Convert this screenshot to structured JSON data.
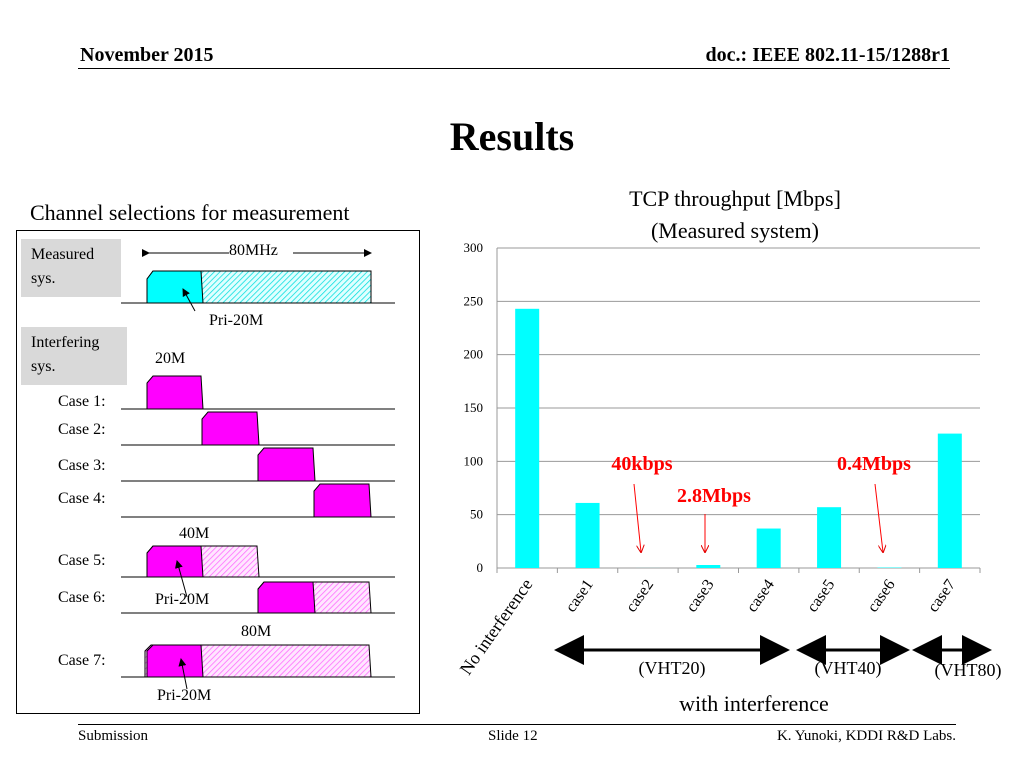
{
  "header": {
    "date": "November 2015",
    "doc": "doc.: IEEE 802.11-15/1288r1"
  },
  "title": "Results",
  "channel_panel": {
    "heading": "Channel selections for measurement",
    "measured_label": "Measured sys.",
    "interfering_label": "Interfering sys.",
    "bw_80": "80MHz",
    "pri_label": "Pri-20M",
    "bw_20": "20M",
    "bw_40": "40M",
    "bw_80b": "80M",
    "cases": [
      "Case 1:",
      "Case 2:",
      "Case 3:",
      "Case 4:",
      "Case 5:",
      "Case 6:",
      "Case 7:"
    ],
    "colors": {
      "measured": "#00ffff",
      "interfering": "#ff00ff",
      "border": "#000000"
    }
  },
  "chart_title_line1": "TCP throughput [Mbps]",
  "chart_title_line2": "(Measured system)",
  "chart_data": {
    "type": "bar",
    "categories": [
      "No interference",
      "case1",
      "case2",
      "case3",
      "case4",
      "case5",
      "case6",
      "case7"
    ],
    "values": [
      243,
      61,
      0.04,
      2.8,
      37,
      57,
      0.4,
      126
    ],
    "ylim": [
      0,
      300
    ],
    "yticks": [
      0,
      50,
      100,
      150,
      200,
      250,
      300
    ],
    "grid": true,
    "bar_color": "#00ffff",
    "annotations": [
      {
        "text": "40kbps",
        "category": "case2",
        "color": "#ff0000"
      },
      {
        "text": "2.8Mbps",
        "category": "case3",
        "color": "#ff0000"
      },
      {
        "text": "0.4Mbps",
        "category": "case6",
        "color": "#ff0000"
      }
    ],
    "groups": [
      {
        "label": "(VHT20)",
        "from": "case1",
        "to": "case4"
      },
      {
        "label": "(VHT40)",
        "from": "case5",
        "to": "case6"
      },
      {
        "label": "(VHT80)",
        "from": "case7",
        "to": "case7"
      }
    ],
    "group_caption": "with interference"
  },
  "footer": {
    "left": "Submission",
    "center": "Slide 12",
    "right": "K. Yunoki, KDDI R&D Labs."
  }
}
